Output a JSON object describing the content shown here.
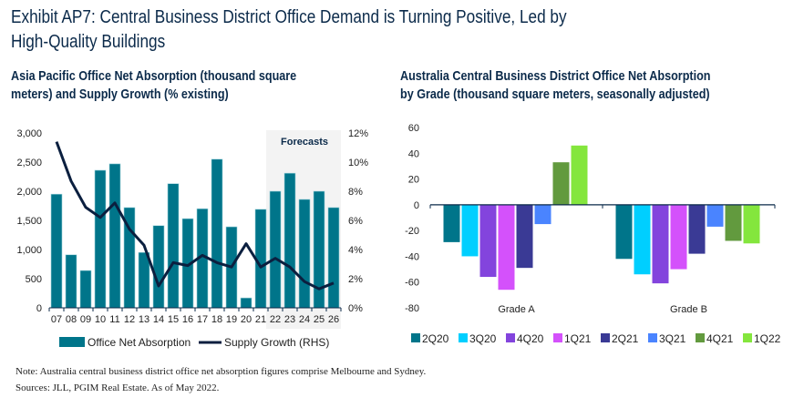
{
  "title": "Exhibit AP7: Central Business District Office Demand is Turning Positive, Led by High-Quality Buildings",
  "title_line1": "Exhibit AP7: Central Business District Office Demand is Turning Positive, Led by",
  "title_line2": "High-Quality Buildings",
  "note": "Note: Australia central business district office net absorption figures comprise Melbourne and Sydney.",
  "sources": "Sources: JLL, PGIM Real Estate. As of May 2022.",
  "chart_data": [
    {
      "type": "bar",
      "title_line1": "Asia Pacific Office Net Absorption (thousand square",
      "title_line2": "meters) and Supply Growth (% existing)",
      "categories": [
        "07",
        "08",
        "09",
        "10",
        "11",
        "12",
        "13",
        "14",
        "15",
        "16",
        "17",
        "18",
        "19",
        "20",
        "21",
        "22",
        "23",
        "24",
        "25",
        "26"
      ],
      "series": [
        {
          "name": "Office Net Absorption",
          "type": "bar",
          "axis": "left",
          "color": "#00758a",
          "values": [
            1950,
            910,
            640,
            2360,
            2470,
            1720,
            950,
            1410,
            2130,
            1530,
            1700,
            2550,
            1390,
            170,
            1690,
            2000,
            2310,
            1860,
            2000,
            1720
          ]
        },
        {
          "name": "Supply Growth (RHS)",
          "type": "line",
          "axis": "right",
          "color": "#0b1f3f",
          "values": [
            11.4,
            8.7,
            6.9,
            6.2,
            7.2,
            5.4,
            4.3,
            1.5,
            3.1,
            2.9,
            3.6,
            3.1,
            2.8,
            4.4,
            2.8,
            3.4,
            2.8,
            1.8,
            1.3,
            1.7
          ]
        }
      ],
      "ylim": [
        0,
        3000
      ],
      "yticks": [
        "0",
        "500",
        "1,000",
        "1,500",
        "2,000",
        "2,500",
        "3,000"
      ],
      "y2lim": [
        0,
        12
      ],
      "y2ticks": [
        "0%",
        "2%",
        "4%",
        "6%",
        "8%",
        "10%",
        "12%"
      ],
      "annotation": "Forecasts",
      "forecast_start": "22",
      "legend": "bottom"
    },
    {
      "type": "bar",
      "title_line1": "Australia Central Business District Office Net Absorption",
      "title_line2": "by Grade (thousand square meters, seasonally adjusted)",
      "categories": [
        "Grade A",
        "Grade B"
      ],
      "series": [
        {
          "name": "2Q20",
          "color": "#00758a",
          "values": [
            -29,
            -42
          ]
        },
        {
          "name": "3Q20",
          "color": "#00cfff",
          "values": [
            -40,
            -54
          ]
        },
        {
          "name": "4Q20",
          "color": "#8344dd",
          "values": [
            -56,
            -61
          ]
        },
        {
          "name": "1Q21",
          "color": "#d451fb",
          "values": [
            -66,
            -50
          ]
        },
        {
          "name": "2Q21",
          "color": "#3a3a95",
          "values": [
            -49,
            -38
          ]
        },
        {
          "name": "3Q21",
          "color": "#4a84ff",
          "values": [
            -15,
            -17
          ]
        },
        {
          "name": "4Q21",
          "color": "#629a3e",
          "values": [
            33,
            -28
          ]
        },
        {
          "name": "1Q22",
          "color": "#84e63d",
          "values": [
            46,
            -30
          ]
        }
      ],
      "ylim": [
        -80,
        60
      ],
      "yticks": [
        "-80",
        "-60",
        "-40",
        "-20",
        "0",
        "20",
        "40",
        "60"
      ],
      "legend": "bottom"
    }
  ]
}
